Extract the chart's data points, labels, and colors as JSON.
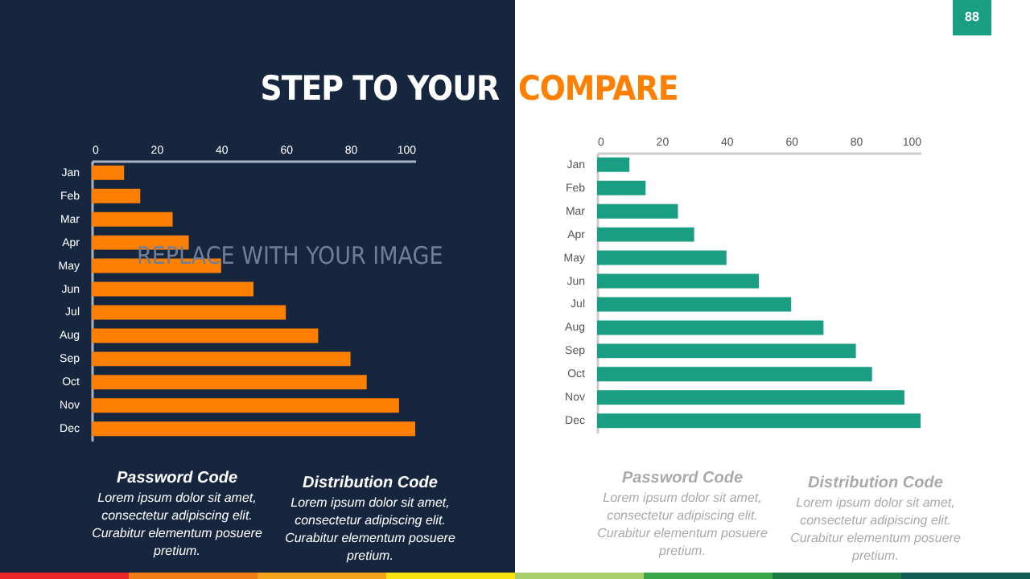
{
  "chart_data": [
    {
      "type": "bar",
      "orientation": "horizontal",
      "title": "STEP TO YOUR",
      "categories": [
        "Jan",
        "Feb",
        "Mar",
        "Apr",
        "May",
        "Jun",
        "Jul",
        "Aug",
        "Sep",
        "Oct",
        "Nov",
        "Dec"
      ],
      "values": [
        10,
        15,
        25,
        30,
        40,
        50,
        60,
        70,
        80,
        85,
        95,
        100
      ],
      "color": "#ff8000",
      "xlim": [
        0,
        100
      ],
      "xticks": [
        0,
        20,
        40,
        60,
        80,
        100
      ],
      "grid": false,
      "annotations": [
        "REPLACE WITH YOUR IMAGE",
        "Password  Code",
        "Lorem ipsum dolor sit amet, consectetur adipiscing elit. Curabitur elementum posuere pretium.",
        "Distribution Code",
        "Lorem ipsum dolor sit amet, consectetur adipiscing elit. Curabitur elementum posuere pretium."
      ]
    },
    {
      "type": "bar",
      "orientation": "horizontal",
      "title": "COMPARE",
      "categories": [
        "Jan",
        "Feb",
        "Mar",
        "Apr",
        "May",
        "Jun",
        "Jul",
        "Aug",
        "Sep",
        "Oct",
        "Nov",
        "Dec"
      ],
      "values": [
        10,
        15,
        25,
        30,
        40,
        50,
        60,
        70,
        80,
        85,
        95,
        100
      ],
      "color": "#1a9e82",
      "xlim": [
        0,
        100
      ],
      "xticks": [
        0,
        20,
        40,
        60,
        80,
        100
      ],
      "grid": false,
      "annotations": [
        "88",
        "Password  Code",
        "Lorem ipsum dolor sit amet, consectetur adipiscing elit. Curabitur elementum posuere pretium.",
        "Distribution Code",
        "Lorem ipsum dolor sit amet, consectetur adipiscing elit. Curabitur elementum posuere pretium."
      ]
    }
  ]
}
